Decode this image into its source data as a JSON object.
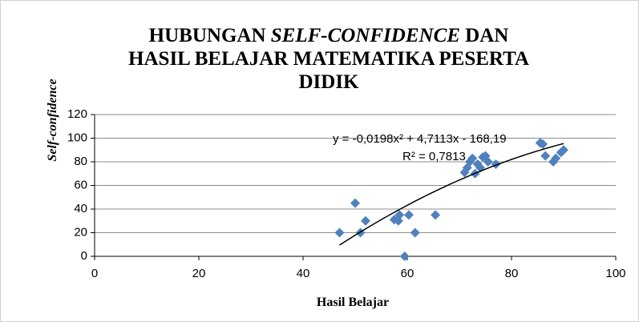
{
  "chart_data": {
    "type": "scatter",
    "title": [
      "HUBUNGAN",
      "SELF-CONFIDENCE",
      "DAN",
      "HASIL BELAJAR MATEMATIKA PESERTA",
      "DIDIK"
    ],
    "x_label": "Hasil Belajar",
    "y_label": "Self-confidence",
    "xlim": [
      0,
      100
    ],
    "xticks": [
      0,
      20,
      40,
      60,
      80,
      100
    ],
    "ylim": [
      0,
      120
    ],
    "yticks": [
      0,
      20,
      40,
      60,
      80,
      100,
      120
    ],
    "grid": true,
    "series": [
      {
        "name": "Self-confidence",
        "color": "#4f81bd",
        "x": [
          47,
          50,
          51,
          52,
          57.5,
          58.3,
          58.5,
          59.5,
          60.3,
          61.5,
          65.4,
          71,
          71.5,
          72,
          72.5,
          73,
          73.5,
          74,
          74.5,
          75,
          75.5,
          77,
          85.5,
          86,
          86.5,
          88,
          88.5,
          89.5,
          90
        ],
        "values": [
          20,
          45,
          20,
          30,
          31,
          30,
          35,
          0,
          35,
          20,
          35,
          71,
          75,
          80,
          83,
          70,
          78,
          75,
          84,
          85,
          80,
          78,
          96,
          95,
          85,
          80,
          83,
          88,
          90
        ]
      }
    ],
    "trendline": {
      "coefficients": [
        -0.0198,
        4.7113,
        -168.19
      ],
      "x_range": [
        47,
        90
      ],
      "equation": "y = -0,0198x² + 4,7113x - 168,19",
      "r2": 0.7813,
      "r2_label": "R² = 0,7813"
    }
  }
}
